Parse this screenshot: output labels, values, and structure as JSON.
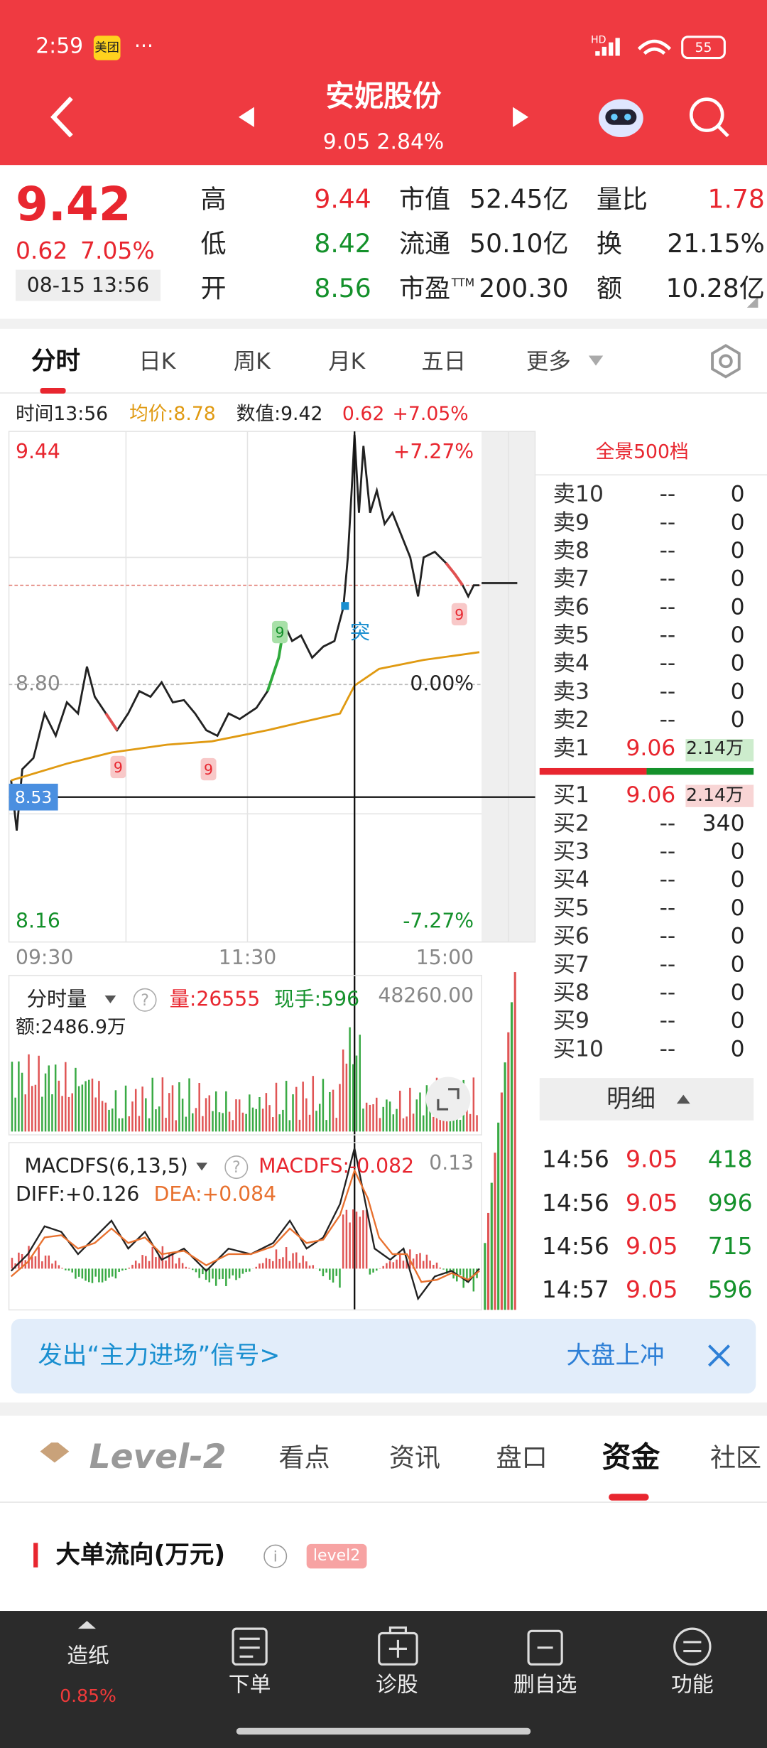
{
  "status_bar": {
    "time": "2:59",
    "badge": "美团",
    "dots": "···",
    "network": "HD",
    "battery": "55"
  },
  "header": {
    "title": "安妮股份",
    "subtitle": "9.05 2.84%"
  },
  "quote": {
    "price": "9.42",
    "change": "0.62",
    "change_pct": "7.05%",
    "datetime": "08-15 13:56",
    "stats": [
      [
        {
          "label": "高",
          "value": "9.44",
          "color": "#e8262f"
        },
        {
          "label": "市值",
          "value": "52.45亿",
          "color": "#222"
        },
        {
          "label": "量比",
          "value": "1.78",
          "color": "#e8262f"
        }
      ],
      [
        {
          "label": "低",
          "value": "8.42",
          "color": "#14912b"
        },
        {
          "label": "流通",
          "value": "50.10亿",
          "color": "#222"
        },
        {
          "label": "换",
          "value": "21.15%",
          "color": "#222"
        }
      ],
      [
        {
          "label": "开",
          "value": "8.56",
          "color": "#14912b"
        },
        {
          "label": "市盈",
          "label_sup": "TTM",
          "value": "200.30",
          "color": "#222"
        },
        {
          "label": "额",
          "value": "10.28亿",
          "color": "#222"
        }
      ]
    ]
  },
  "tabs": {
    "items": [
      "分时",
      "日K",
      "周K",
      "月K",
      "五日",
      "更多"
    ],
    "active": 0
  },
  "info": {
    "time": "时间13:56",
    "avg": "均价:8.78",
    "value": "数值:9.42",
    "change": "0.62",
    "pct": "+7.05%"
  },
  "chart": {
    "high": "9.44",
    "pct_high": "+7.27%",
    "mid": "8.80",
    "pct_mid": "0.00%",
    "low": "8.16",
    "pct_low": "-7.27%",
    "cursor": "8.53",
    "marker": "突",
    "badges": [
      "9",
      "9",
      "9",
      "9"
    ],
    "times": [
      "09:30",
      "11:30",
      "15:00"
    ]
  },
  "volume": {
    "selector": "分时量",
    "help": "?",
    "vol": "量:26555",
    "hand": "现手:596",
    "max": "48260.00",
    "amount": "额:2486.9万"
  },
  "macd": {
    "selector": "MACDFS(6,13,5)",
    "help": "?",
    "macdfs": "MACDFS:-0.082",
    "max": "0.13",
    "diff": "DIFF:+0.126",
    "dea": "DEA:+0.084"
  },
  "order_book": {
    "title": "全景500档",
    "sell": [
      [
        "卖10",
        "--",
        "0"
      ],
      [
        "卖9",
        "--",
        "0"
      ],
      [
        "卖8",
        "--",
        "0"
      ],
      [
        "卖7",
        "--",
        "0"
      ],
      [
        "卖6",
        "--",
        "0"
      ],
      [
        "卖5",
        "--",
        "0"
      ],
      [
        "卖4",
        "--",
        "0"
      ],
      [
        "卖3",
        "--",
        "0"
      ],
      [
        "卖2",
        "--",
        "0"
      ],
      [
        "卖1",
        "9.06",
        "2.14万"
      ]
    ],
    "buy": [
      [
        "买1",
        "9.06",
        "2.14万"
      ],
      [
        "买2",
        "--",
        "340"
      ],
      [
        "买3",
        "--",
        "0"
      ],
      [
        "买4",
        "--",
        "0"
      ],
      [
        "买5",
        "--",
        "0"
      ],
      [
        "买6",
        "--",
        "0"
      ],
      [
        "买7",
        "--",
        "0"
      ],
      [
        "买8",
        "--",
        "0"
      ],
      [
        "买9",
        "--",
        "0"
      ],
      [
        "买10",
        "--",
        "0"
      ]
    ]
  },
  "detail": {
    "title": "明细",
    "trades": [
      [
        "14:56",
        "9.05",
        "418"
      ],
      [
        "14:56",
        "9.05",
        "996"
      ],
      [
        "14:56",
        "9.05",
        "715"
      ],
      [
        "14:57",
        "9.05",
        "596"
      ]
    ]
  },
  "banner": {
    "text": "发出“主力进场”信号>",
    "right": "大盘上冲"
  },
  "bottom_tabs": {
    "logo": "Level-2",
    "items": [
      "看点",
      "资讯",
      "盘口",
      "资金",
      "社区"
    ],
    "active": 3
  },
  "section": {
    "title": "大单流向(万元)",
    "badge": "level2"
  },
  "nav": [
    {
      "label": "造纸",
      "sub": "0.85%"
    },
    {
      "label": "下单"
    },
    {
      "label": "诊股"
    },
    {
      "label": "删自选"
    },
    {
      "label": "功能"
    }
  ]
}
